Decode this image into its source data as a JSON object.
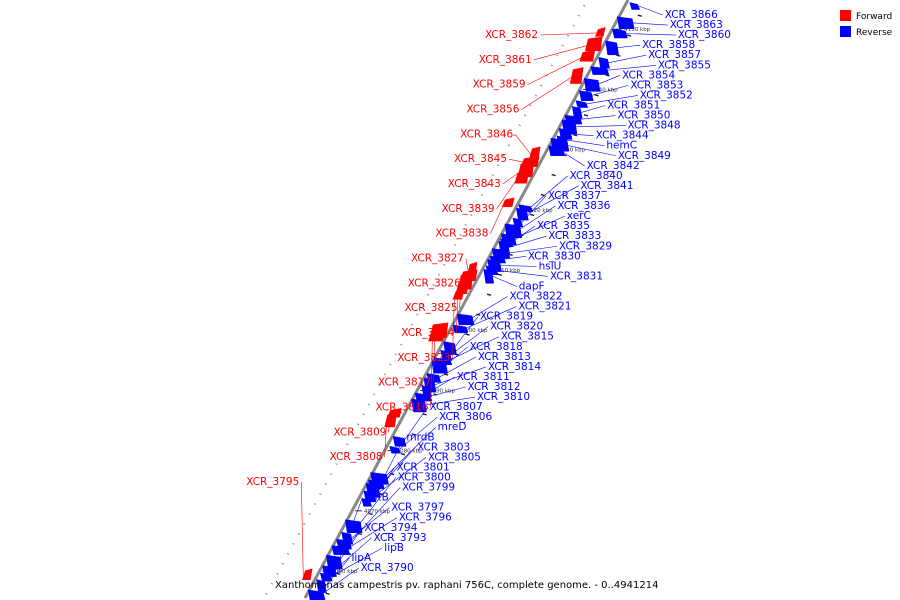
{
  "caption": "Xanthomonas campestris pv. raphani 756C, complete genome. - 0..4941214",
  "colors": {
    "forward": "#ff0000",
    "reverse": "#0000ff",
    "axis": "#888888"
  },
  "legend": [
    {
      "label": "Forward",
      "strand": "forward"
    },
    {
      "label": "Reverse",
      "strand": "reverse"
    }
  ],
  "ticks": [
    "4060 kbp",
    "4070 kbp",
    "4080 kbp",
    "4090 kbp",
    "4100 kbp",
    "4110 kbp",
    "4120 kbp",
    "4130 kbp",
    "4140 kbp",
    "4150 kbp"
  ],
  "forward_genes": [
    {
      "name": "XCR_3862",
      "t": 0.945
    },
    {
      "name": "XCR_3861",
      "t": 0.925
    },
    {
      "name": "XCR_3859",
      "t": 0.905
    },
    {
      "name": "XCR_3856",
      "t": 0.872
    },
    {
      "name": "XCR_3846",
      "t": 0.742
    },
    {
      "name": "XCR_3845",
      "t": 0.728
    },
    {
      "name": "XCR_3843",
      "t": 0.715
    },
    {
      "name": "XCR_3839",
      "t": 0.702
    },
    {
      "name": "XCR_3838",
      "t": 0.66
    },
    {
      "name": "XCR_3827",
      "t": 0.548
    },
    {
      "name": "XCR_3826",
      "t": 0.538
    },
    {
      "name": "XCR_3825",
      "t": 0.528
    },
    {
      "name": "XCR_3824",
      "t": 0.518
    },
    {
      "name": "XCR_3823",
      "t": 0.506
    },
    {
      "name": "XCR_3817",
      "t": 0.446
    },
    {
      "name": "XCR_3816",
      "t": 0.438
    },
    {
      "name": "XCR_3809",
      "t": 0.308
    },
    {
      "name": "XCR_3808",
      "t": 0.296
    },
    {
      "name": "XCR_3795",
      "t": 0.038
    }
  ],
  "reverse_genes": [
    {
      "name": "XCR_3866",
      "t": 0.99
    },
    {
      "name": "XCR_3863",
      "t": 0.962
    },
    {
      "name": "XCR_3860",
      "t": 0.944
    },
    {
      "name": "XCR_3858",
      "t": 0.92
    },
    {
      "name": "XCR_3857",
      "t": 0.895
    },
    {
      "name": "XCR_3855",
      "t": 0.882
    },
    {
      "name": "XCR_3854",
      "t": 0.858
    },
    {
      "name": "XCR_3853",
      "t": 0.84
    },
    {
      "name": "XCR_3852",
      "t": 0.826
    },
    {
      "name": "XCR_3851",
      "t": 0.812
    },
    {
      "name": "XCR_3850",
      "t": 0.8
    },
    {
      "name": "XCR_3848",
      "t": 0.788
    },
    {
      "name": "XCR_3844",
      "t": 0.776
    },
    {
      "name": "hemC",
      "t": 0.766
    },
    {
      "name": "XCR_3849",
      "t": 0.758
    },
    {
      "name": "XCR_3842",
      "t": 0.748
    },
    {
      "name": "XCR_3840",
      "t": 0.652
    },
    {
      "name": "XCR_3841",
      "t": 0.642
    },
    {
      "name": "XCR_3837",
      "t": 0.628
    },
    {
      "name": "XCR_3836",
      "t": 0.614
    },
    {
      "name": "xerC",
      "t": 0.6
    },
    {
      "name": "XCR_3835",
      "t": 0.594
    },
    {
      "name": "XCR_3833",
      "t": 0.586
    },
    {
      "name": "XCR_3829",
      "t": 0.576
    },
    {
      "name": "XCR_3830",
      "t": 0.566
    },
    {
      "name": "hslU",
      "t": 0.556
    },
    {
      "name": "XCR_3831",
      "t": 0.548
    },
    {
      "name": "dapF",
      "t": 0.538
    },
    {
      "name": "XCR_3822",
      "t": 0.466
    },
    {
      "name": "XCR_3821",
      "t": 0.45
    },
    {
      "name": "XCR_3819",
      "t": 0.418
    },
    {
      "name": "XCR_3820",
      "t": 0.406
    },
    {
      "name": "XCR_3815",
      "t": 0.396
    },
    {
      "name": "XCR_3818",
      "t": 0.386
    },
    {
      "name": "XCR_3813",
      "t": 0.368
    },
    {
      "name": "XCR_3814",
      "t": 0.356
    },
    {
      "name": "XCR_3811",
      "t": 0.346
    },
    {
      "name": "XCR_3812",
      "t": 0.336
    },
    {
      "name": "XCR_3810",
      "t": 0.322
    },
    {
      "name": "XCR_3807",
      "t": 0.262
    },
    {
      "name": "XCR_3806",
      "t": 0.248
    },
    {
      "name": "mreD",
      "t": 0.2
    },
    {
      "name": "mrdB",
      "t": 0.19
    },
    {
      "name": "XCR_3803",
      "t": 0.18
    },
    {
      "name": "XCR_3805",
      "t": 0.17
    },
    {
      "name": "XCR_3801",
      "t": 0.16
    },
    {
      "name": "XCR_3800",
      "t": 0.12
    },
    {
      "name": "XCR_3799",
      "t": 0.09
    },
    {
      "name": "mltB",
      "t": 0.06
    },
    {
      "name": "XCR_3797",
      "t": 0.1
    },
    {
      "name": "XCR_3796",
      "t": 0.08
    },
    {
      "name": "XCR_3794",
      "t": 0.06
    },
    {
      "name": "XCR_3793",
      "t": 0.045
    },
    {
      "name": "lipB",
      "t": 0.035
    },
    {
      "name": "lipA",
      "t": 0.02
    },
    {
      "name": "XCR_3790",
      "t": 0.005
    }
  ]
}
